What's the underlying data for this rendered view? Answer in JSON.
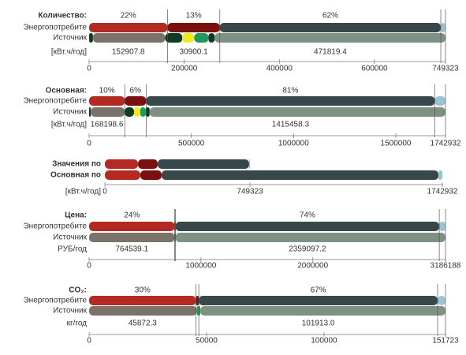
{
  "chart_data": [
    {
      "type": "stacked-bar",
      "title": "Количество:",
      "unit": "[кВт.ч/год]",
      "xlim": [
        0,
        749323
      ],
      "xticks": [
        0,
        200000,
        400000,
        600000,
        749323
      ],
      "series": [
        {
          "name": "Энергопотребите",
          "values": [
            164851,
            110000,
            464580,
            9892
          ],
          "colors": [
            "#b22a22",
            "#7a1010",
            "#37474a",
            "#9cc3d2"
          ]
        },
        {
          "name": "Источник",
          "values": [
            8000,
            152000,
            36000,
            25000,
            30000,
            13000,
            485323
          ],
          "colors": [
            "#0f3d22",
            "#7b726a",
            "#0f3d22",
            "#f0ec1c",
            "#1f9a5a",
            "#0f3d22",
            "#7f9183"
          ]
        }
      ],
      "share_labels": [
        "22%",
        "13%",
        "62%"
      ],
      "total_labels": [
        "152907.8",
        "30900.1",
        "471819.4"
      ]
    },
    {
      "type": "stacked-bar",
      "title": "Основная:",
      "unit": "[кВт.ч/год]",
      "xlim": [
        0,
        1742932
      ],
      "xticks": [
        0,
        500000,
        1000000,
        1500000,
        1742932
      ],
      "series": [
        {
          "name": "Энергопотребите",
          "values": [
            174293,
            104576,
            1411775,
            52288
          ],
          "colors": [
            "#b22a22",
            "#7a1010",
            "#37474a",
            "#9cc3d2"
          ]
        },
        {
          "name": "Источник",
          "values": [
            8000,
            166000,
            46000,
            30000,
            27000,
            19000,
            1446932
          ],
          "colors": [
            "#0f3d22",
            "#7b726a",
            "#0f3d22",
            "#f0ec1c",
            "#1f9a5a",
            "#0f3d22",
            "#7f9183"
          ]
        }
      ],
      "share_labels": [
        "10%",
        "6%",
        "81%"
      ],
      "total_labels": [
        "168198.6",
        "",
        "1415458.3"
      ]
    },
    {
      "type": "stacked-bar",
      "unit": "[кВт.ч/год]",
      "xlim": [
        0,
        1742932
      ],
      "xticks": [
        0,
        749323,
        1742932
      ],
      "series": [
        {
          "name": "Значения по",
          "values": [
            171000,
            102000,
            472000,
            4323
          ],
          "colors": [
            "#b22a22",
            "#7a1010",
            "#37474a",
            "#9cc3d2"
          ]
        },
        {
          "name": "Основная по",
          "values": [
            183000,
            110000,
            1430000,
            19932
          ],
          "colors": [
            "#b22a22",
            "#7a1010",
            "#37474a",
            "#9cc3d2"
          ]
        }
      ]
    },
    {
      "type": "stacked-bar",
      "title": "Цена:",
      "unit": "РУБ/год",
      "xlim": [
        0,
        3186188
      ],
      "xticks": [
        0,
        1000000,
        2000000,
        3186188
      ],
      "series": [
        {
          "name": "Энергопотребите",
          "values": [
            764685,
            8000,
            2357779,
            55724
          ],
          "colors": [
            "#b22a22",
            "#7a1010",
            "#37474a",
            "#9cc3d2"
          ]
        },
        {
          "name": "Источник",
          "values": [
            764539,
            8000,
            2413649
          ],
          "colors": [
            "#7b726a",
            "#1f9a5a",
            "#7f9183"
          ]
        }
      ],
      "share_labels": [
        "24%",
        null,
        "74%"
      ],
      "total_labels": [
        "764539.1",
        null,
        "2359097.2"
      ]
    },
    {
      "type": "stacked-bar",
      "title": "CO₂:",
      "unit": "кг/год",
      "xlim": [
        0,
        151723
      ],
      "xticks": [
        0,
        50000,
        100000,
        151723
      ],
      "series": [
        {
          "name": "Энергопотребите",
          "values": [
            45517,
            1200,
            101654,
            3352
          ],
          "colors": [
            "#b22a22",
            "#7a1010",
            "#37474a",
            "#9cc3d2"
          ]
        },
        {
          "name": "Источник",
          "values": [
            45872,
            1500,
            104351
          ],
          "colors": [
            "#7b726a",
            "#1f9a5a",
            "#7f9183"
          ]
        }
      ],
      "share_labels": [
        "30%",
        null,
        "67%"
      ],
      "total_labels": [
        "45872.3",
        null,
        "101913.0"
      ]
    }
  ]
}
